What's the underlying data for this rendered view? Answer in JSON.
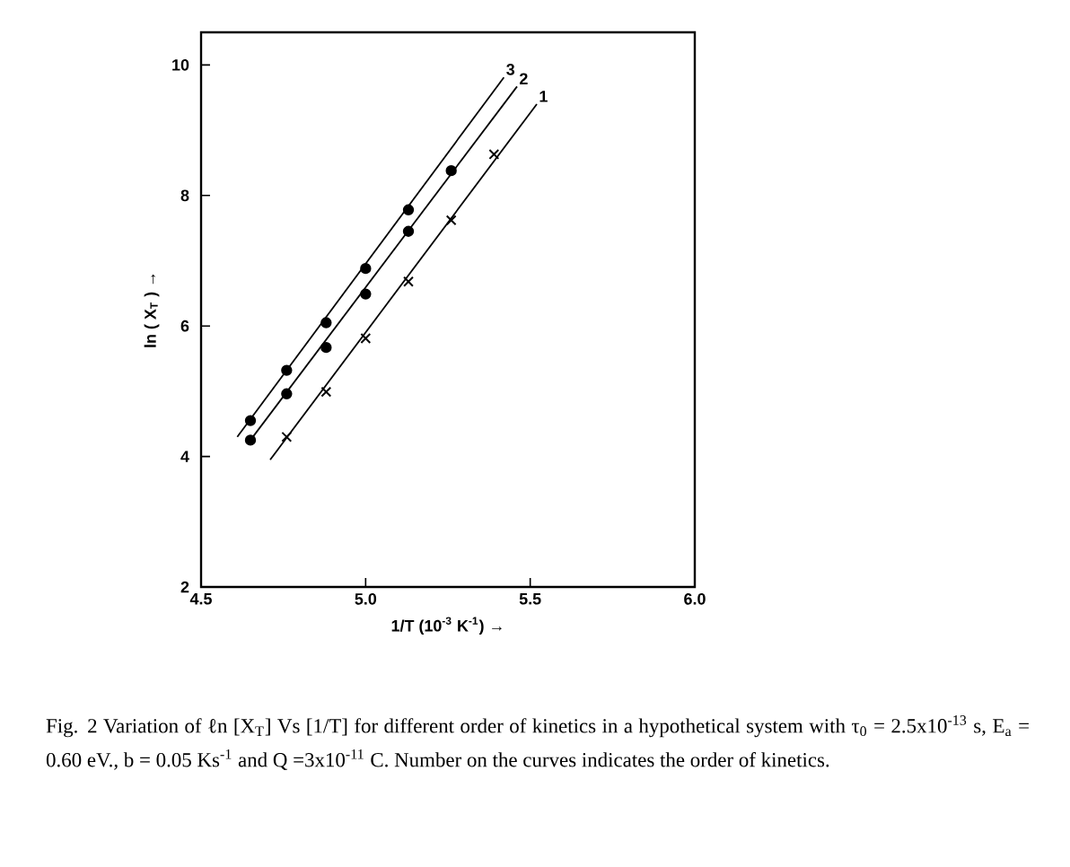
{
  "chart_data": {
    "type": "scatter",
    "xlabel": "1/T (10$^{-3}$ K$^{-1}$) →",
    "ylabel": "ln ( X$_{T}$ ) →",
    "xlim": [
      4.5,
      6.0
    ],
    "ylim": [
      2,
      10.5
    ],
    "xticks": [
      {
        "value": 4.5,
        "label": "4.5"
      },
      {
        "value": 5.0,
        "label": "5.0"
      },
      {
        "value": 5.5,
        "label": "5.5"
      },
      {
        "value": 6.0,
        "label": "6.0"
      }
    ],
    "yticks": [
      2,
      4,
      6,
      8,
      10
    ],
    "grid": false,
    "series": [
      {
        "marker": "circle",
        "color": "#000000",
        "x": [
          4.65,
          4.76,
          4.88,
          5.0,
          5.13
        ],
        "values": [
          4.55,
          5.32,
          6.05,
          6.88,
          7.78
        ]
      },
      {
        "marker": "circle",
        "color": "#000000",
        "x": [
          4.65,
          4.76,
          4.88,
          5.0,
          5.13,
          5.26
        ],
        "values": [
          4.25,
          4.96,
          5.67,
          6.49,
          7.45,
          8.38
        ]
      },
      {
        "marker": "cross",
        "color": "#000000",
        "x": [
          4.76,
          4.88,
          5.0,
          5.13,
          5.26,
          5.39
        ],
        "values": [
          4.3,
          4.99,
          5.81,
          6.68,
          7.62,
          8.63
        ]
      },
      {
        "type": "line",
        "name": "3",
        "marker": "none",
        "color": "#000000",
        "x": [
          4.61,
          5.42
        ],
        "values": [
          4.3,
          9.81
        ]
      },
      {
        "type": "line",
        "name": "2",
        "marker": "none",
        "color": "#000000",
        "x": [
          4.65,
          5.46
        ],
        "values": [
          4.25,
          9.67
        ]
      },
      {
        "type": "line",
        "name": "1",
        "marker": "none",
        "color": "#000000",
        "x": [
          4.71,
          5.52
        ],
        "values": [
          3.95,
          9.4
        ]
      }
    ],
    "annotations": [
      "Fig. 2  Variation of ℓn [X$_{T}$] Vs [1/T] for different order of kinetics in a hypothetical system with τ$_{0}$ = 2.5x10$^{-13}$ s, E$_{a}$ = 0.60 eV., b = 0.05 Ks$^{-1}$ and Q =3x10$^{-11}$ C. Number on the curves indicates the order of kinetics."
    ]
  }
}
